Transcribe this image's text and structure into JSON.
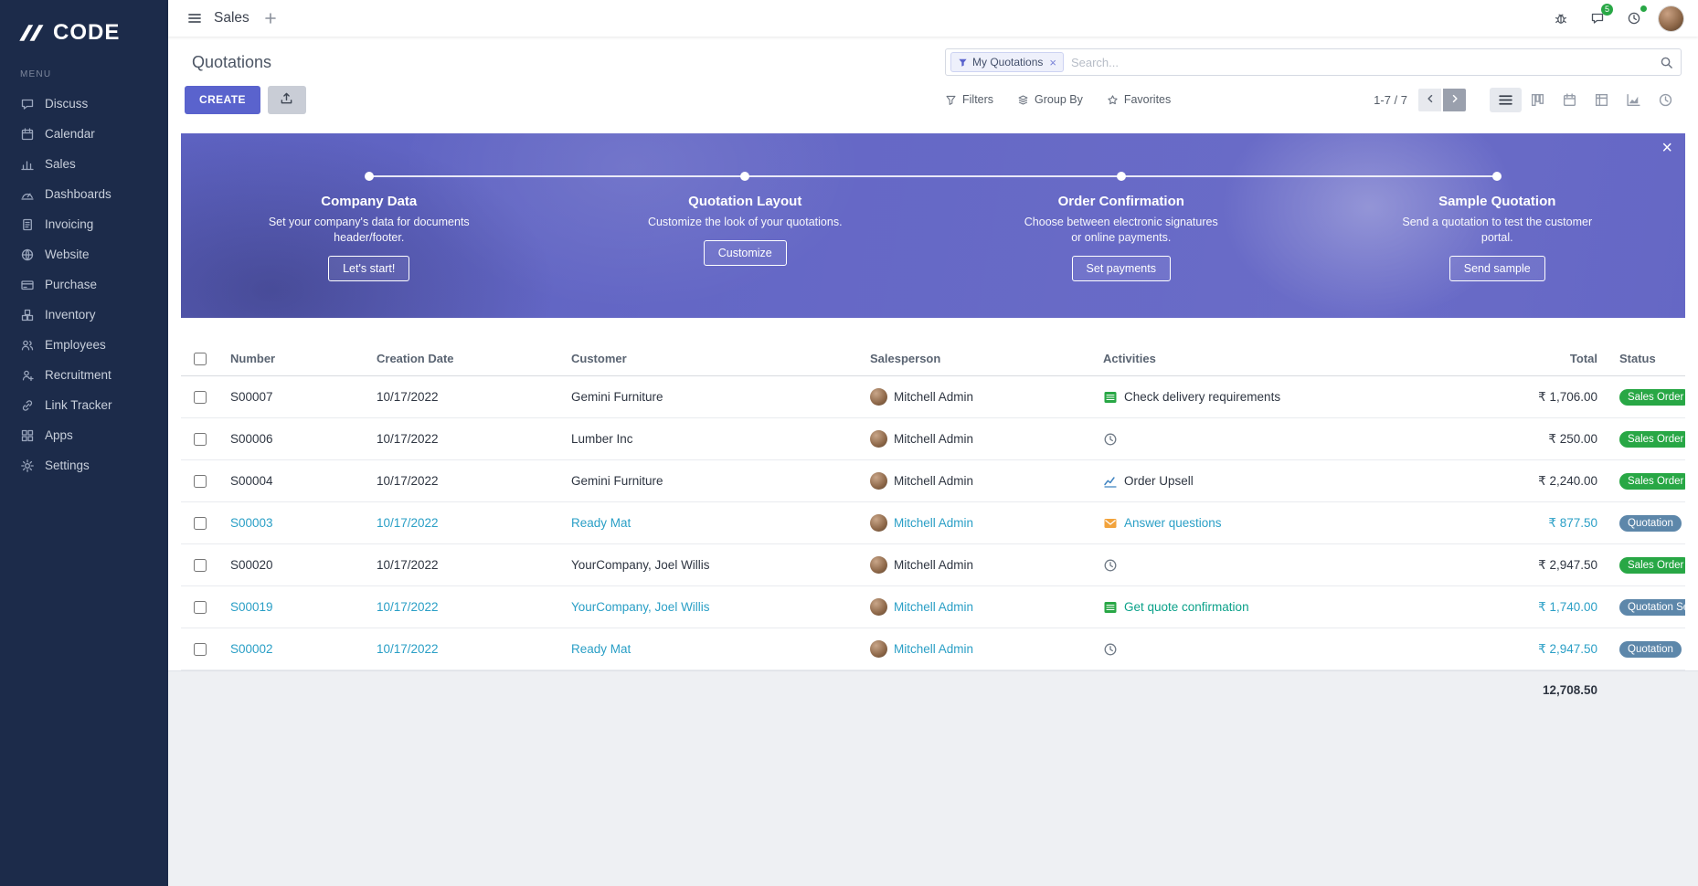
{
  "theme": {
    "sidebar_bg": "#1c2b4a",
    "primary": "#5a63cd",
    "success": "#28a745",
    "badge_info": "#5d87aa",
    "row_info_text": "#2a9fc6",
    "activity_teal": "#0ba189",
    "banner_overlay": "#5c62d0"
  },
  "sidebar": {
    "logo_text": "CODE",
    "menu_label": "MENU",
    "items": [
      {
        "label": "Discuss",
        "icon": "discuss-icon"
      },
      {
        "label": "Calendar",
        "icon": "calendar-icon"
      },
      {
        "label": "Sales",
        "icon": "sales-icon"
      },
      {
        "label": "Dashboards",
        "icon": "dashboards-icon"
      },
      {
        "label": "Invoicing",
        "icon": "invoicing-icon"
      },
      {
        "label": "Website",
        "icon": "website-icon"
      },
      {
        "label": "Purchase",
        "icon": "purchase-icon"
      },
      {
        "label": "Inventory",
        "icon": "inventory-icon"
      },
      {
        "label": "Employees",
        "icon": "employees-icon"
      },
      {
        "label": "Recruitment",
        "icon": "recruitment-icon"
      },
      {
        "label": "Link Tracker",
        "icon": "link-tracker-icon"
      },
      {
        "label": "Apps",
        "icon": "apps-icon"
      },
      {
        "label": "Settings",
        "icon": "settings-icon"
      }
    ]
  },
  "topbar": {
    "app_title": "Sales",
    "messages_badge": "5"
  },
  "control_panel": {
    "page_title": "Quotations",
    "create_label": "CREATE",
    "search_facet": "My Quotations",
    "search_placeholder": "Search...",
    "filters_label": "Filters",
    "group_by_label": "Group By",
    "favorites_label": "Favorites",
    "pager_text": "1-7 / 7"
  },
  "onboarding": {
    "steps": [
      {
        "title": "Company Data",
        "description": "Set your company's data for documents header/footer.",
        "button": "Let's start!"
      },
      {
        "title": "Quotation Layout",
        "description": "Customize the look of your quotations.",
        "button": "Customize"
      },
      {
        "title": "Order Confirmation",
        "description": "Choose between electronic signatures or online payments.",
        "button": "Set payments"
      },
      {
        "title": "Sample Quotation",
        "description": "Send a quotation to test the customer portal.",
        "button": "Send sample"
      }
    ]
  },
  "table": {
    "columns": [
      "Number",
      "Creation Date",
      "Customer",
      "Salesperson",
      "Activities",
      "Total",
      "Status"
    ],
    "rows": [
      {
        "number": "S00007",
        "creation_date": "10/17/2022",
        "customer": "Gemini Furniture",
        "salesperson": "Mitchell Admin",
        "activity_icon": "tasks-icon",
        "activity_label": "Check delivery requirements",
        "total": "₹ 1,706.00",
        "status": "Sales Order",
        "status_type": "success",
        "tone": "default"
      },
      {
        "number": "S00006",
        "creation_date": "10/17/2022",
        "customer": "Lumber Inc",
        "salesperson": "Mitchell Admin",
        "activity_icon": "clock-icon",
        "activity_label": "",
        "total": "₹ 250.00",
        "status": "Sales Order",
        "status_type": "success",
        "tone": "default"
      },
      {
        "number": "S00004",
        "creation_date": "10/17/2022",
        "customer": "Gemini Furniture",
        "salesperson": "Mitchell Admin",
        "activity_icon": "chart-icon",
        "activity_label": "Order Upsell",
        "total": "₹ 2,240.00",
        "status": "Sales Order",
        "status_type": "success",
        "tone": "default"
      },
      {
        "number": "S00003",
        "creation_date": "10/17/2022",
        "customer": "Ready Mat",
        "salesperson": "Mitchell Admin",
        "activity_icon": "envelope-icon",
        "activity_label": "Answer questions",
        "total": "₹ 877.50",
        "status": "Quotation",
        "status_type": "info",
        "tone": "info"
      },
      {
        "number": "S00020",
        "creation_date": "10/17/2022",
        "customer": "YourCompany, Joel Willis",
        "salesperson": "Mitchell Admin",
        "activity_icon": "clock-icon",
        "activity_label": "",
        "total": "₹ 2,947.50",
        "status": "Sales Order",
        "status_type": "success",
        "tone": "default"
      },
      {
        "number": "S00019",
        "creation_date": "10/17/2022",
        "customer": "YourCompany, Joel Willis",
        "salesperson": "Mitchell Admin",
        "activity_icon": "tasks-icon",
        "activity_label": "Get quote confirmation",
        "activity_label_color": "teal",
        "total": "₹ 1,740.00",
        "status": "Quotation Sent",
        "status_type": "info",
        "tone": "info"
      },
      {
        "number": "S00002",
        "creation_date": "10/17/2022",
        "customer": "Ready Mat",
        "salesperson": "Mitchell Admin",
        "activity_icon": "clock-icon",
        "activity_label": "",
        "total": "₹ 2,947.50",
        "status": "Quotation",
        "status_type": "info",
        "tone": "info"
      }
    ],
    "total_sum": "12,708.50"
  }
}
